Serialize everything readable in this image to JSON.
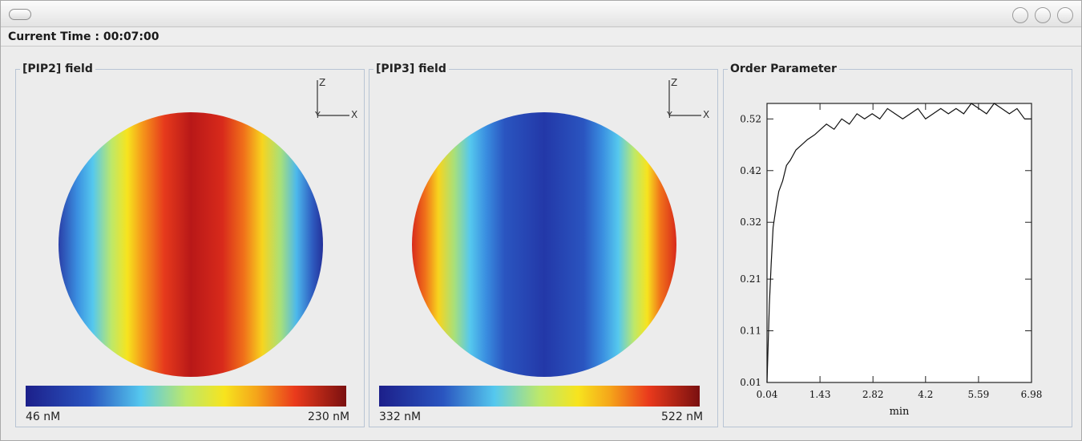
{
  "window": {
    "time_label": "Current Time : 00:07:00"
  },
  "pip2": {
    "title": "[PIP2] field",
    "min_label": "46 nM",
    "max_label": "230 nM",
    "axis_z": "Z",
    "axis_y": "Y",
    "axis_x": "X"
  },
  "pip3": {
    "title": "[PIP3] field",
    "min_label": "332 nM",
    "max_label": "522 nM",
    "axis_z": "Z",
    "axis_y": "Y",
    "axis_x": "X"
  },
  "order": {
    "title": "Order Parameter"
  },
  "colors": {
    "jet": [
      "#1c1f8a",
      "#2a4ab5",
      "#3a8ee0",
      "#55c8ee",
      "#bde86a",
      "#f7e41e",
      "#f5a51a",
      "#ea3a1c",
      "#c81a19",
      "#7a1010"
    ],
    "panel_border": "#b8c4d4"
  },
  "chart_data": {
    "type": "line",
    "title": "Order Parameter",
    "xlabel": "min",
    "ylabel": "",
    "xlim": [
      0.04,
      6.98
    ],
    "ylim": [
      0.01,
      0.55
    ],
    "x_ticks": [
      "0.04",
      "1.43",
      "2.82",
      "4.2",
      "5.59",
      "6.98"
    ],
    "y_ticks": [
      "0.01",
      "0.11",
      "0.21",
      "0.32",
      "0.42",
      "0.52"
    ],
    "grid": false,
    "x": [
      0.04,
      0.1,
      0.15,
      0.2,
      0.28,
      0.35,
      0.45,
      0.55,
      0.65,
      0.8,
      0.95,
      1.1,
      1.3,
      1.45,
      1.6,
      1.8,
      2.0,
      2.2,
      2.4,
      2.6,
      2.8,
      3.0,
      3.2,
      3.4,
      3.6,
      3.8,
      4.0,
      4.2,
      4.4,
      4.6,
      4.8,
      5.0,
      5.2,
      5.4,
      5.6,
      5.8,
      6.0,
      6.2,
      6.4,
      6.6,
      6.8,
      6.98
    ],
    "series": [
      {
        "values": [
          0.01,
          0.16,
          0.24,
          0.31,
          0.35,
          0.38,
          0.4,
          0.43,
          0.44,
          0.46,
          0.47,
          0.48,
          0.49,
          0.5,
          0.51,
          0.5,
          0.52,
          0.51,
          0.53,
          0.52,
          0.53,
          0.52,
          0.54,
          0.53,
          0.52,
          0.53,
          0.54,
          0.52,
          0.53,
          0.54,
          0.53,
          0.54,
          0.53,
          0.55,
          0.54,
          0.53,
          0.55,
          0.54,
          0.53,
          0.54,
          0.52,
          0.52
        ]
      }
    ]
  }
}
